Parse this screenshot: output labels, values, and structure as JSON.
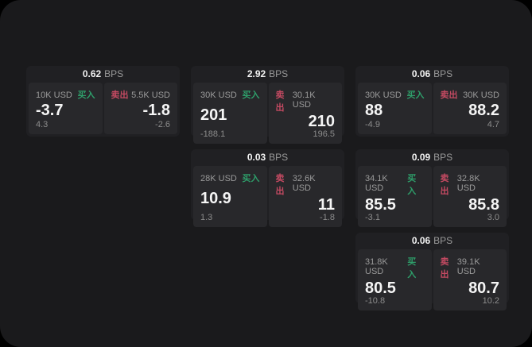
{
  "labels": {
    "buy": "买入",
    "sell": "卖出",
    "bps": "BPS"
  },
  "colors": {
    "buy": "#2e9e6a",
    "sell": "#c44a62",
    "window_bg": "#1a1a1c",
    "card_bg": "#202023",
    "panel_bg": "#28282b"
  },
  "cards": [
    {
      "row": 1,
      "col": 1,
      "bps": "0.62",
      "buy": {
        "size": "10K USD",
        "price": "-3.7",
        "delta": "4.3"
      },
      "sell": {
        "size": "5.5K USD",
        "price": "-1.8",
        "delta": "-2.6"
      }
    },
    {
      "row": 1,
      "col": 2,
      "bps": "2.92",
      "buy": {
        "size": "30K USD",
        "price": "201",
        "delta": "-188.1"
      },
      "sell": {
        "size": "30.1K USD",
        "price": "210",
        "delta": "196.5"
      }
    },
    {
      "row": 1,
      "col": 3,
      "bps": "0.06",
      "buy": {
        "size": "30K USD",
        "price": "88",
        "delta": "-4.9"
      },
      "sell": {
        "size": "30K USD",
        "price": "88.2",
        "delta": "4.7"
      }
    },
    {
      "row": 2,
      "col": 2,
      "bps": "0.03",
      "buy": {
        "size": "28K USD",
        "price": "10.9",
        "delta": "1.3"
      },
      "sell": {
        "size": "32.6K USD",
        "price": "11",
        "delta": "-1.8"
      }
    },
    {
      "row": 2,
      "col": 3,
      "bps": "0.09",
      "buy": {
        "size": "34.1K USD",
        "price": "85.5",
        "delta": "-3.1"
      },
      "sell": {
        "size": "32.8K USD",
        "price": "85.8",
        "delta": "3.0"
      }
    },
    {
      "row": 3,
      "col": 3,
      "bps": "0.06",
      "buy": {
        "size": "31.8K USD",
        "price": "80.5",
        "delta": "-10.8"
      },
      "sell": {
        "size": "39.1K USD",
        "price": "80.7",
        "delta": "10.2"
      }
    }
  ]
}
